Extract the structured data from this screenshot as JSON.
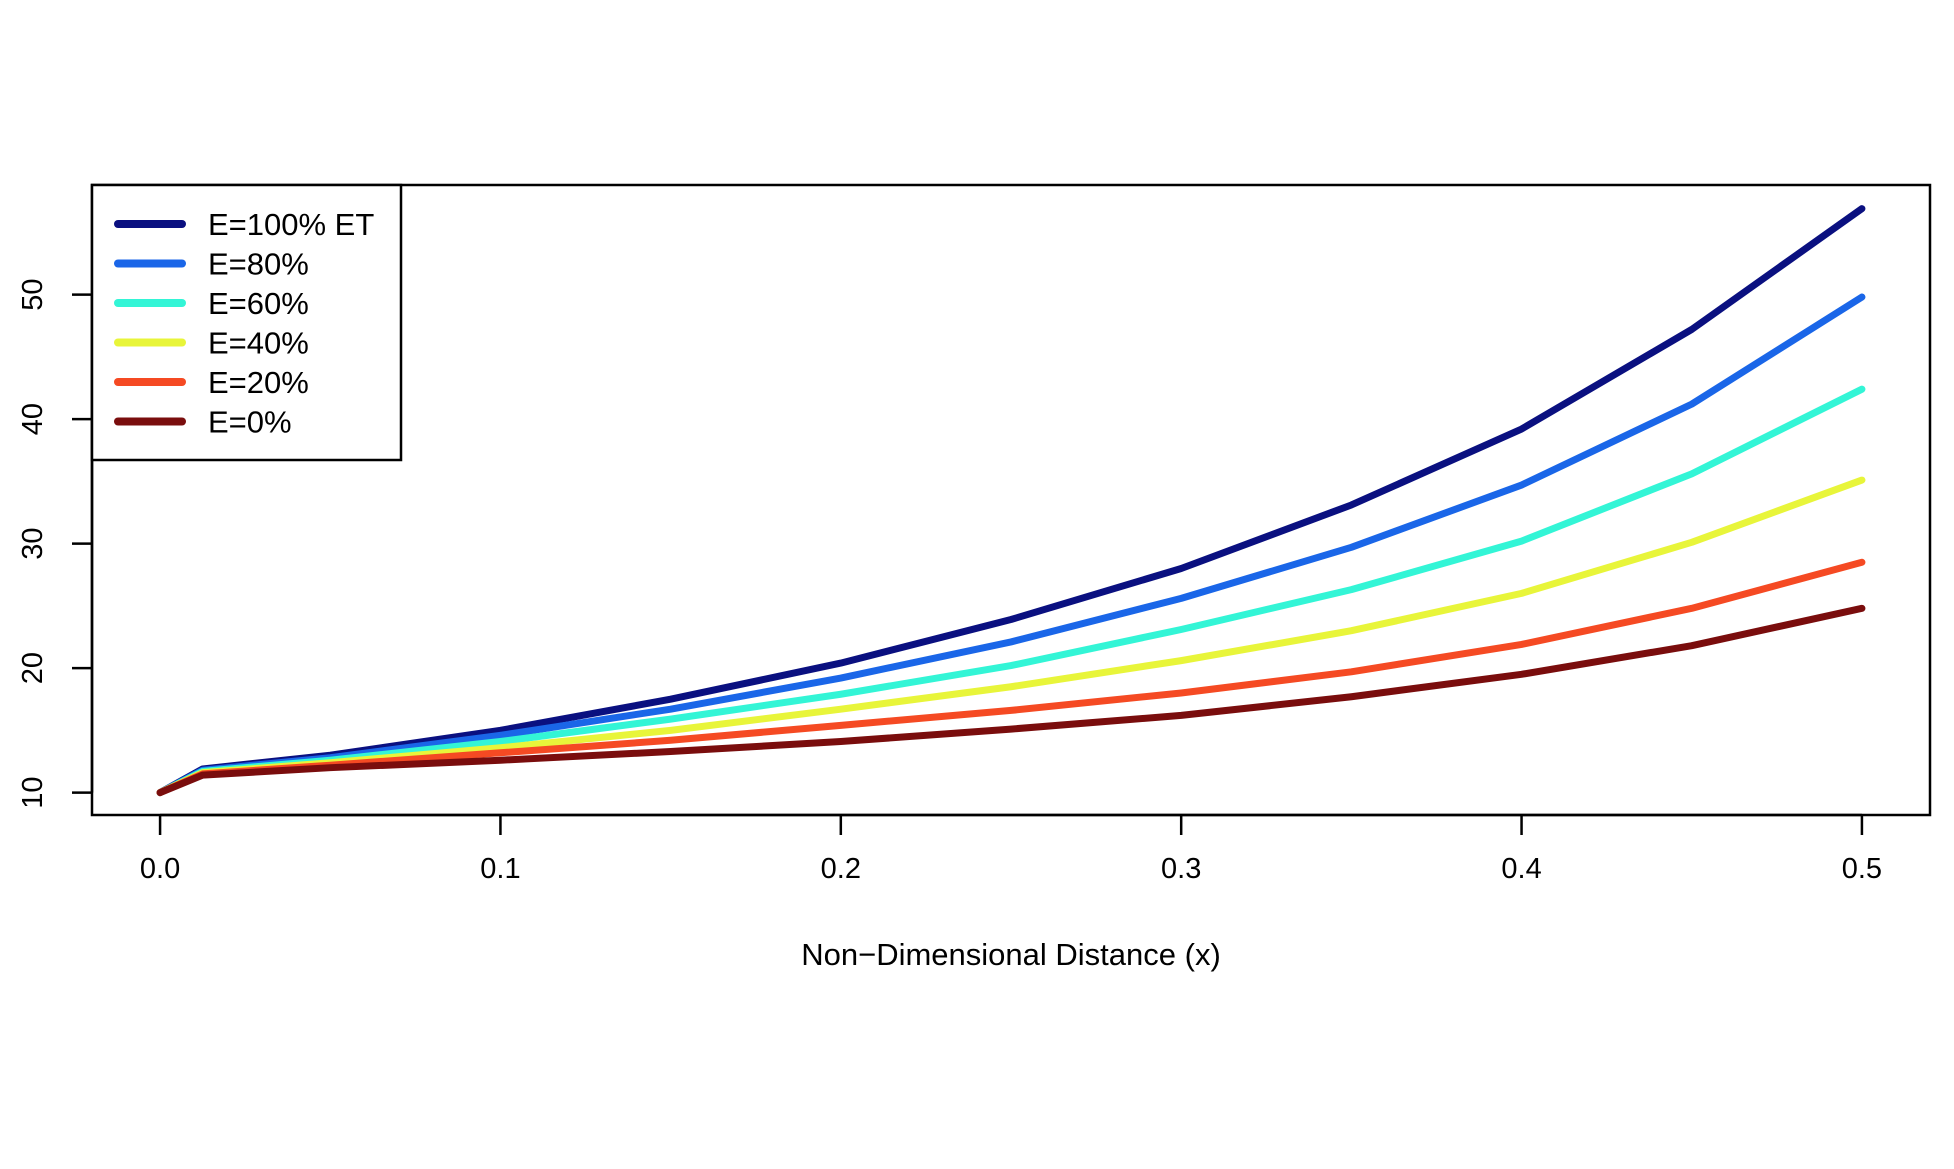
{
  "chart_data": {
    "type": "line",
    "title": "",
    "xlabel": "Non−Dimensional Distance (x)",
    "ylabel": "",
    "xlim": [
      -0.02,
      0.52
    ],
    "ylim": [
      8.2,
      58.8
    ],
    "xticks": [
      0.0,
      0.1,
      0.2,
      0.3,
      0.4,
      0.5
    ],
    "xtick_labels": [
      "0.0",
      "0.1",
      "0.2",
      "0.3",
      "0.4",
      "0.5"
    ],
    "yticks": [
      10,
      20,
      30,
      40,
      50
    ],
    "ytick_labels": [
      "10",
      "20",
      "30",
      "40",
      "50"
    ],
    "grid": false,
    "legend_position": "top-left",
    "x": [
      0.0,
      0.0125,
      0.05,
      0.1,
      0.15,
      0.2,
      0.25,
      0.3,
      0.35,
      0.4,
      0.45,
      0.5
    ],
    "series": [
      {
        "name": "E=100% ET",
        "color": "#0a1080",
        "values": [
          10,
          11.9,
          13.0,
          15.0,
          17.5,
          20.4,
          23.9,
          28.0,
          33.1,
          39.2,
          47.2,
          56.9
        ]
      },
      {
        "name": "E=80%",
        "color": "#1a66e8",
        "values": [
          10,
          11.8,
          12.8,
          14.6,
          16.7,
          19.2,
          22.1,
          25.6,
          29.7,
          34.7,
          41.2,
          49.8
        ]
      },
      {
        "name": "E=60%",
        "color": "#33f5d6",
        "values": [
          10,
          11.7,
          12.6,
          14.1,
          15.9,
          17.9,
          20.2,
          23.1,
          26.3,
          30.2,
          35.6,
          42.4
        ]
      },
      {
        "name": "E=40%",
        "color": "#e8f53a",
        "values": [
          10,
          11.6,
          12.4,
          13.6,
          15.0,
          16.7,
          18.5,
          20.6,
          23.0,
          26.0,
          30.1,
          35.1
        ]
      },
      {
        "name": "E=20%",
        "color": "#f54a23",
        "values": [
          10,
          11.5,
          12.2,
          13.2,
          14.2,
          15.4,
          16.6,
          18.0,
          19.7,
          21.9,
          24.8,
          28.5
        ]
      },
      {
        "name": "E=0%",
        "color": "#7a0d0d",
        "values": [
          10,
          11.4,
          12.0,
          12.6,
          13.3,
          14.1,
          15.1,
          16.2,
          17.7,
          19.5,
          21.8,
          24.8
        ]
      }
    ]
  }
}
